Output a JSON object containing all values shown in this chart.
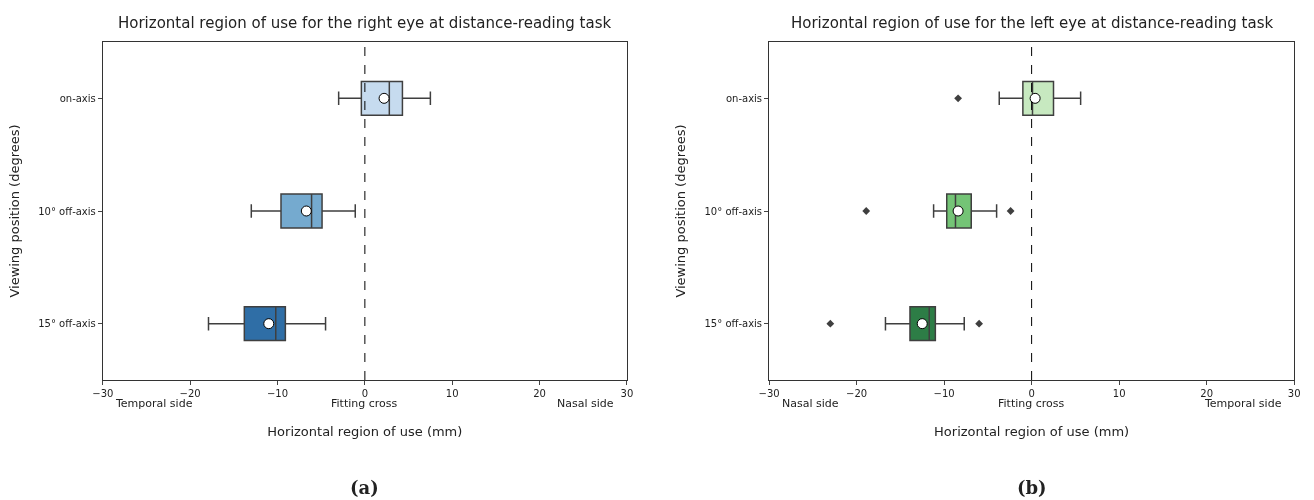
{
  "chart_data": [
    {
      "type": "box",
      "title": "Horizontal region of use for the right eye at distance-reading task",
      "xlabel": "Horizontal region of use (mm)",
      "ylabel": "Viewing position (degrees)",
      "orientation": "horizontal",
      "categories": [
        "on-axis",
        "10° off-axis",
        "15° off-axis"
      ],
      "colors": [
        "#c6dbef",
        "#75aacf",
        "#2f6ea6"
      ],
      "boxes": [
        {
          "low": -3.0,
          "q1": -0.4,
          "median": 2.8,
          "q3": 4.3,
          "high": 7.5,
          "mean": 2.2
        },
        {
          "low": -13.0,
          "q1": -9.6,
          "median": -6.1,
          "q3": -4.9,
          "high": -1.1,
          "mean": -6.7
        },
        {
          "low": -17.9,
          "q1": -13.8,
          "median": -10.2,
          "q3": -9.1,
          "high": -4.5,
          "mean": -11.0
        }
      ],
      "xlim": [
        -30,
        30
      ],
      "xticks": [
        {
          "value": -30,
          "label": "−30"
        },
        {
          "value": -20,
          "label": "−20"
        },
        {
          "value": -10,
          "label": "−10"
        },
        0,
        10,
        20,
        30
      ],
      "ref_lines": [
        {
          "axis": "x",
          "value": 0,
          "color": "#000000",
          "line_style": "dashed"
        }
      ],
      "annotations": [
        "Temporal side",
        "Fitting cross",
        "Nasal side",
        "(a)"
      ],
      "marker": "diamond"
    },
    {
      "type": "box",
      "title": "Horizontal region of use for the left eye at distance-reading task",
      "xlabel": "Horizontal region of use (mm)",
      "ylabel": "Viewing position (degrees)",
      "orientation": "horizontal",
      "categories": [
        "on-axis",
        "10° off-axis",
        "15° off-axis"
      ],
      "colors": [
        "#c7e9c0",
        "#74c476",
        "#2d7d46"
      ],
      "boxes": [
        {
          "low": -3.7,
          "q1": -1.0,
          "median": 0.1,
          "q3": 2.5,
          "high": 5.6,
          "mean": 0.4,
          "outliers": [
            -8.4
          ]
        },
        {
          "low": -11.2,
          "q1": -9.7,
          "median": -8.7,
          "q3": -6.9,
          "high": -4.0,
          "mean": -8.4,
          "outliers": [
            -18.9,
            -2.4
          ]
        },
        {
          "low": -16.7,
          "q1": -13.9,
          "median": -11.7,
          "q3": -11.0,
          "high": -7.7,
          "mean": -12.5,
          "outliers": [
            -23.0,
            -6.0
          ]
        }
      ],
      "xlim": [
        -30,
        30
      ],
      "xticks": [
        {
          "value": -30,
          "label": "−30"
        },
        {
          "value": -20,
          "label": "−20"
        },
        {
          "value": -10,
          "label": "−10"
        },
        0,
        10,
        20,
        30
      ],
      "ref_lines": [
        {
          "axis": "x",
          "value": 0,
          "color": "#000000",
          "line_style": "dashed"
        }
      ],
      "annotations": [
        "Nasal side",
        "Fitting cross",
        "Temporal side",
        "(b)"
      ],
      "marker": "diamond"
    }
  ]
}
